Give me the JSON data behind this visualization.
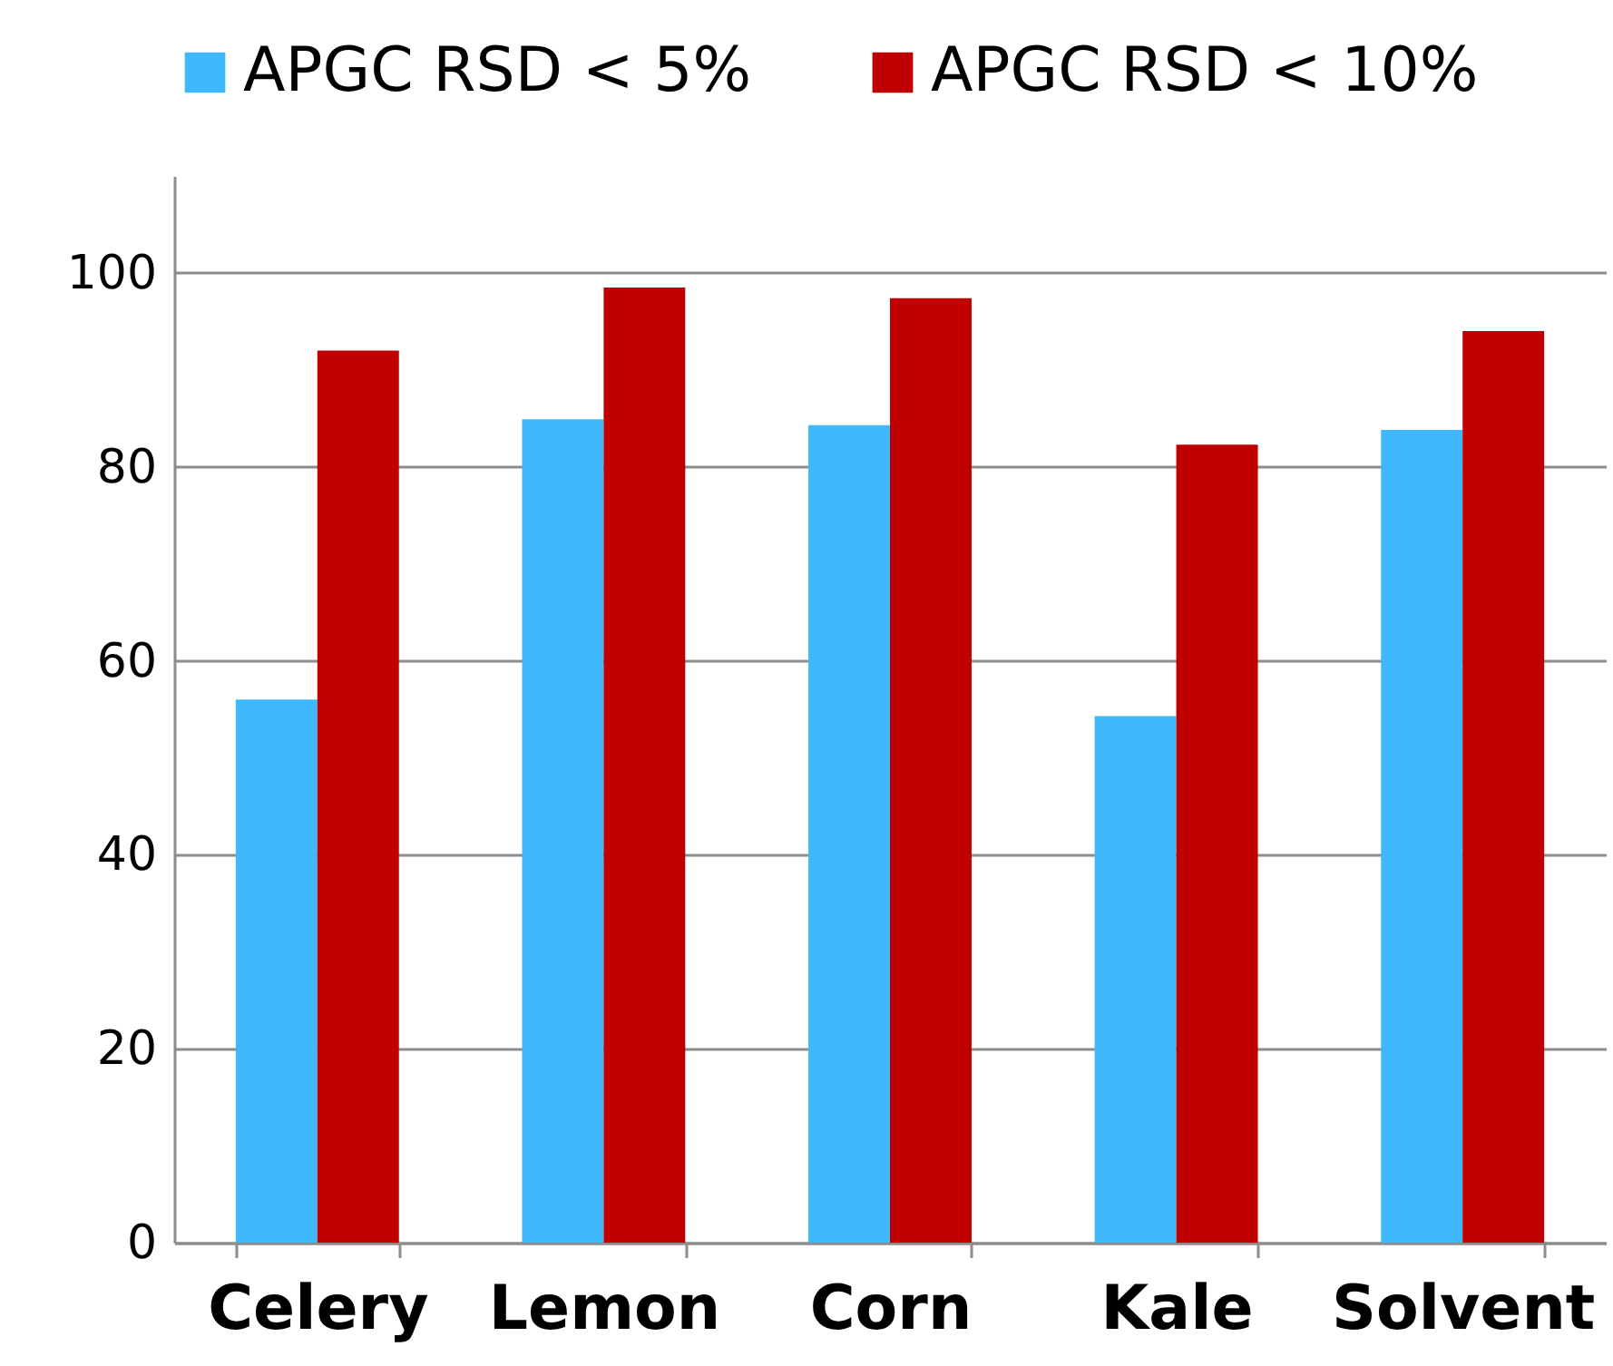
{
  "chart_data": {
    "type": "bar",
    "categories": [
      "Celery",
      "Lemon",
      "Corn",
      "Kale",
      "Solvent"
    ],
    "series": [
      {
        "name": "APGC RSD < 5%",
        "color": "#3fb9fb",
        "values": [
          56.0,
          84.9,
          84.3,
          54.3,
          83.8
        ]
      },
      {
        "name": "APGC RSD < 10%",
        "color": "#c00000",
        "values": [
          92.0,
          98.5,
          97.4,
          82.3,
          94.0
        ]
      }
    ],
    "ylim": [
      0,
      110
    ],
    "yticks": [
      0,
      20,
      40,
      60,
      80,
      100
    ],
    "grid": "y",
    "legend": "top"
  }
}
